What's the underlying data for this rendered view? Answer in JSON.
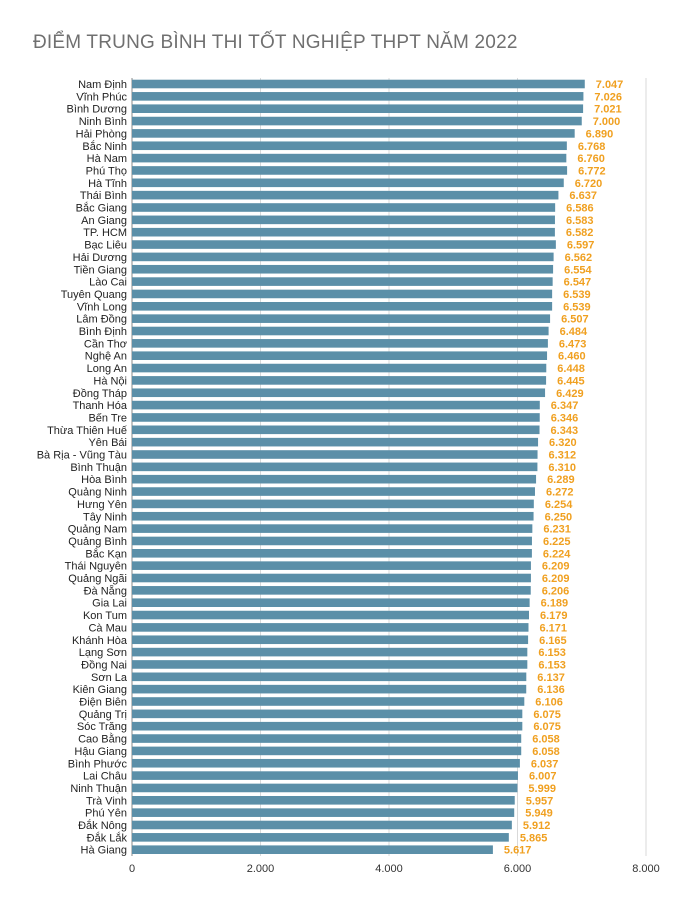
{
  "chart_data": {
    "type": "bar",
    "orientation": "horizontal",
    "title": "ĐIỂM TRUNG BÌNH THI TỐT NGHIỆP THPT NĂM 2022",
    "xlabel": "",
    "ylabel": "",
    "xlim": [
      0,
      8000
    ],
    "ticks": [
      0,
      2000,
      4000,
      6000,
      8000
    ],
    "tick_labels": [
      "0",
      "2.000",
      "4.000",
      "6.000",
      "8.000"
    ],
    "grid": true,
    "bar_color": "#5b8fa8",
    "label_color": "#f0a020",
    "categories": [
      "Nam Định",
      "Vĩnh Phúc",
      "Bình Dương",
      "Ninh Bình",
      "Hải Phòng",
      "Bắc Ninh",
      "Hà Nam",
      "Phú Thọ",
      "Hà Tĩnh",
      "Thái Bình",
      "Bắc Giang",
      "An Giang",
      "TP. HCM",
      "Bạc Liêu",
      "Hải Dương",
      "Tiền Giang",
      "Lào Cai",
      "Tuyên Quang",
      "Vĩnh Long",
      "Lâm Đồng",
      "Bình Định",
      "Cần Thơ",
      "Nghệ An",
      "Long An",
      "Hà Nội",
      "Đồng Tháp",
      "Thanh Hóa",
      "Bến Tre",
      "Thừa Thiên Huế",
      "Yên Bái",
      "Bà Rịa - Vũng Tàu",
      "Bình Thuận",
      "Hòa Bình",
      "Quảng Ninh",
      "Hưng Yên",
      "Tây Ninh",
      "Quảng Nam",
      "Quảng Bình",
      "Bắc Kạn",
      "Thái Nguyên",
      "Quảng Ngãi",
      "Đà Nẵng",
      "Gia Lai",
      "Kon Tum",
      "Cà Mau",
      "Khánh Hòa",
      "Lạng Sơn",
      "Đồng Nai",
      "Sơn La",
      "Kiên Giang",
      "Điện Biên",
      "Quảng Trị",
      "Sóc Trăng",
      "Cao Bằng",
      "Hậu Giang",
      "Bình Phước",
      "Lai Châu",
      "Ninh Thuận",
      "Trà Vinh",
      "Phú Yên",
      "Đắk Nông",
      "Đắk Lắk",
      "Hà Giang"
    ],
    "values": [
      7047,
      7026,
      7021,
      7000,
      6890,
      6768,
      6760,
      6772,
      6720,
      6637,
      6586,
      6583,
      6582,
      6597,
      6562,
      6554,
      6547,
      6539,
      6539,
      6507,
      6484,
      6473,
      6460,
      6448,
      6445,
      6429,
      6347,
      6346,
      6343,
      6320,
      6312,
      6310,
      6289,
      6272,
      6254,
      6250,
      6231,
      6225,
      6224,
      6209,
      6209,
      6206,
      6189,
      6179,
      6171,
      6165,
      6153,
      6153,
      6137,
      6136,
      6106,
      6075,
      6075,
      6058,
      6058,
      6037,
      6007,
      5999,
      5957,
      5949,
      5912,
      5865,
      5617
    ],
    "value_labels": [
      "7.047",
      "7.026",
      "7.021",
      "7.000",
      "6.890",
      "6.768",
      "6.760",
      "6.772",
      "6.720",
      "6.637",
      "6.586",
      "6.583",
      "6.582",
      "6.597",
      "6.562",
      "6.554",
      "6.547",
      "6.539",
      "6.539",
      "6.507",
      "6.484",
      "6.473",
      "6.460",
      "6.448",
      "6.445",
      "6.429",
      "6.347",
      "6.346",
      "6.343",
      "6.320",
      "6.312",
      "6.310",
      "6.289",
      "6.272",
      "6.254",
      "6.250",
      "6.231",
      "6.225",
      "6.224",
      "6.209",
      "6.209",
      "6.206",
      "6.189",
      "6.179",
      "6.171",
      "6.165",
      "6.153",
      "6.153",
      "6.137",
      "6.136",
      "6.106",
      "6.075",
      "6.075",
      "6.058",
      "6.058",
      "6.037",
      "6.007",
      "5.999",
      "5.957",
      "5.949",
      "5.912",
      "5.865",
      "5.617"
    ]
  }
}
